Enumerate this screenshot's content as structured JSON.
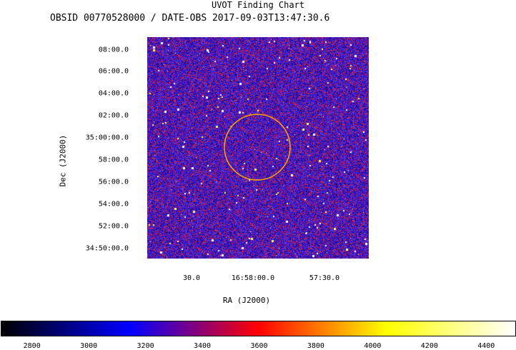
{
  "title": "UVOT Finding Chart",
  "subtitle": "OBSID 00770528000 / DATE-OBS 2017-09-03T13:47:30.6",
  "chart_data": {
    "type": "heatmap",
    "title": "UVOT Finding Chart",
    "subtitle": "OBSID 00770528000 / DATE-OBS 2017-09-03T13:47:30.6",
    "xlabel": "RA (J2000)",
    "ylabel": "Dec (J2000)",
    "x_ticks": [
      "30.0",
      "16:58:00.0",
      "57:30.0"
    ],
    "y_ticks": [
      "08:00.0",
      "06:00.0",
      "04:00.0",
      "02:00.0",
      "35:00:00.0",
      "58:00.0",
      "56:00.0",
      "54:00.0",
      "52:00.0",
      "34:50:00.0"
    ],
    "colorbar": {
      "ticks": [
        2800,
        3000,
        3200,
        3400,
        3600,
        3800,
        4000,
        4200,
        4400
      ],
      "range": [
        2690,
        4500
      ],
      "colors": [
        "#000000",
        "#0000ff",
        "#ff0000",
        "#ffff00",
        "#ffffff"
      ]
    },
    "annotation": {
      "shape": "circle",
      "color": "#ffa500"
    }
  }
}
